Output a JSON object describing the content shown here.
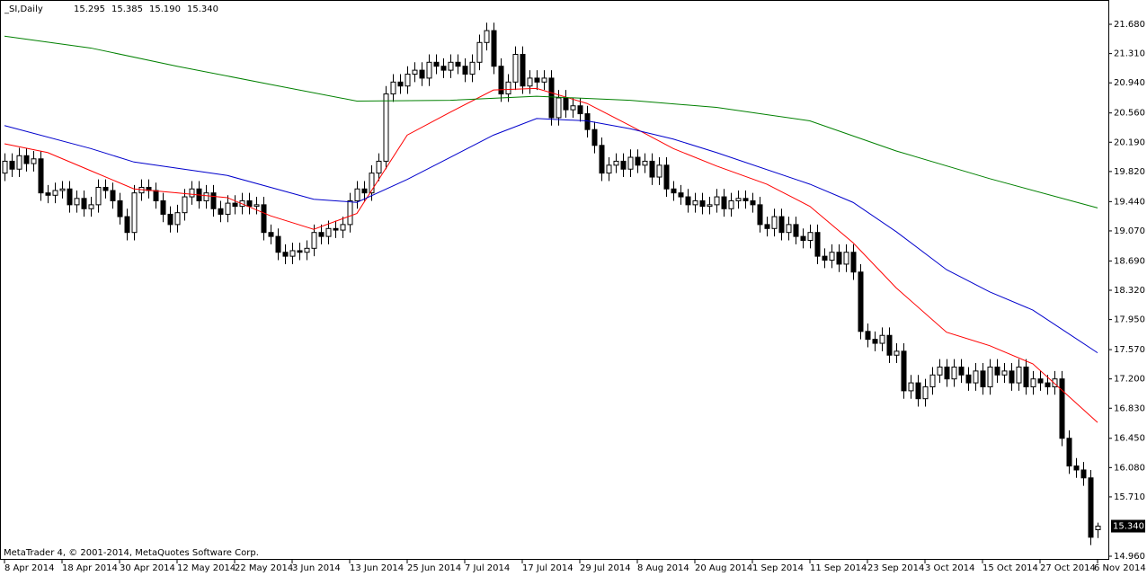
{
  "chart_data": {
    "type": "candlestick",
    "title": "_SI,Daily",
    "ohlc_labels": [
      "15.295",
      "15.385",
      "15.190",
      "15.340"
    ],
    "footer": "MetaTrader 4, © 2001-2014, MetaQuotes Software Corp.",
    "current_price": {
      "value": 15.34,
      "label": "15.340"
    },
    "up_color": "#ffffff",
    "down_color": "#000000",
    "categories": [
      "8 Apr 2014",
      null,
      null,
      null,
      null,
      null,
      null,
      null,
      "18 Apr 2014",
      null,
      null,
      null,
      null,
      null,
      null,
      null,
      "30 Apr 2014",
      null,
      null,
      null,
      null,
      null,
      null,
      null,
      "12 May 2014",
      null,
      null,
      null,
      null,
      null,
      null,
      null,
      "22 May 2014",
      null,
      null,
      null,
      null,
      null,
      null,
      null,
      "3 Jun 2014",
      null,
      null,
      null,
      null,
      null,
      null,
      null,
      "13 Jun 2014",
      null,
      null,
      null,
      null,
      null,
      null,
      null,
      "25 Jun 2014",
      null,
      null,
      null,
      null,
      null,
      null,
      null,
      "7 Jul 2014",
      null,
      null,
      null,
      null,
      null,
      null,
      null,
      "17 Jul 2014",
      null,
      null,
      null,
      null,
      null,
      null,
      null,
      "29 Jul 2014",
      null,
      null,
      null,
      null,
      null,
      null,
      null,
      "8 Aug 2014",
      null,
      null,
      null,
      null,
      null,
      null,
      null,
      "20 Aug 2014",
      null,
      null,
      null,
      null,
      null,
      null,
      null,
      "1 Sep 2014",
      null,
      null,
      null,
      null,
      null,
      null,
      null,
      "11 Sep 2014",
      null,
      null,
      null,
      null,
      null,
      null,
      null,
      "23 Sep 2014",
      null,
      null,
      null,
      null,
      null,
      null,
      null,
      "3 Oct 2014",
      null,
      null,
      null,
      null,
      null,
      null,
      null,
      "15 Oct 2014",
      null,
      null,
      null,
      null,
      null,
      null,
      null,
      "27 Oct 2014",
      null,
      null,
      null,
      null,
      null,
      null,
      null,
      "6 Nov 2014"
    ],
    "open": [
      19.8,
      19.95,
      19.85,
      20.02,
      19.92,
      19.98,
      19.55,
      19.52,
      19.58,
      19.6,
      19.4,
      19.48,
      19.35,
      19.4,
      19.62,
      19.58,
      19.45,
      19.25,
      19.05,
      19.55,
      19.62,
      19.58,
      19.45,
      19.28,
      19.15,
      19.3,
      19.5,
      19.6,
      19.45,
      19.55,
      19.35,
      19.28,
      19.42,
      19.38,
      19.45,
      19.38,
      19.4,
      19.05,
      19.0,
      18.8,
      18.75,
      18.82,
      18.8,
      18.85,
      19.05,
      19.0,
      19.1,
      19.08,
      19.15,
      19.45,
      19.6,
      19.55,
      19.8,
      19.95,
      20.8,
      20.95,
      20.9,
      21.05,
      21.1,
      21.0,
      21.2,
      21.15,
      21.1,
      21.2,
      21.15,
      21.05,
      21.2,
      21.45,
      21.6,
      21.15,
      20.8,
      20.95,
      21.3,
      20.9,
      21.0,
      20.95,
      21.0,
      20.5,
      20.75,
      20.6,
      20.65,
      20.55,
      20.35,
      20.15,
      19.8,
      19.9,
      19.95,
      19.85,
      20.0,
      19.9,
      19.95,
      19.75,
      19.9,
      19.6,
      19.55,
      19.5,
      19.4,
      19.45,
      19.38,
      19.4,
      19.5,
      19.35,
      19.45,
      19.48,
      19.45,
      19.4,
      19.15,
      19.1,
      19.25,
      19.05,
      19.15,
      19.0,
      18.95,
      19.05,
      18.75,
      18.7,
      18.8,
      18.65,
      18.8,
      18.55,
      17.8,
      17.7,
      17.65,
      17.75,
      17.5,
      17.55,
      17.05,
      17.15,
      16.95,
      17.1,
      17.25,
      17.35,
      17.2,
      17.35,
      17.25,
      17.15,
      17.3,
      17.1,
      17.35,
      17.25,
      17.3,
      17.15,
      17.35,
      17.1,
      17.2,
      17.15,
      17.1,
      17.2,
      16.45,
      16.1,
      16.05,
      15.95,
      15.295
    ],
    "high": [
      20.05,
      20.05,
      20.12,
      20.12,
      20.08,
      20.08,
      19.65,
      19.68,
      19.7,
      19.7,
      19.58,
      19.58,
      19.5,
      19.72,
      19.72,
      19.68,
      19.55,
      19.35,
      19.65,
      19.72,
      19.72,
      19.68,
      19.55,
      19.38,
      19.4,
      19.6,
      19.7,
      19.7,
      19.65,
      19.65,
      19.45,
      19.52,
      19.52,
      19.55,
      19.55,
      19.5,
      19.5,
      19.15,
      19.1,
      18.9,
      18.92,
      18.92,
      18.95,
      19.15,
      19.15,
      19.2,
      19.2,
      19.25,
      19.55,
      19.7,
      19.7,
      19.9,
      20.05,
      20.9,
      21.05,
      21.05,
      21.15,
      21.2,
      21.2,
      21.3,
      21.3,
      21.25,
      21.3,
      21.3,
      21.25,
      21.3,
      21.55,
      21.7,
      21.7,
      21.25,
      21.05,
      21.4,
      21.4,
      21.1,
      21.1,
      21.1,
      21.1,
      20.85,
      20.85,
      20.75,
      20.75,
      20.65,
      20.45,
      20.25,
      20.0,
      20.05,
      20.05,
      20.1,
      20.1,
      20.05,
      20.05,
      20.0,
      20.0,
      19.7,
      19.65,
      19.6,
      19.55,
      19.55,
      19.5,
      19.6,
      19.6,
      19.55,
      19.58,
      19.58,
      19.55,
      19.5,
      19.25,
      19.35,
      19.35,
      19.25,
      19.25,
      19.1,
      19.15,
      19.15,
      18.85,
      18.9,
      18.9,
      18.9,
      18.9,
      18.65,
      17.9,
      17.8,
      17.85,
      17.85,
      17.65,
      17.65,
      17.25,
      17.25,
      17.2,
      17.35,
      17.45,
      17.45,
      17.45,
      17.45,
      17.35,
      17.4,
      17.4,
      17.45,
      17.45,
      17.4,
      17.4,
      17.45,
      17.45,
      17.3,
      17.3,
      17.25,
      17.3,
      17.3,
      16.55,
      16.2,
      16.15,
      16.05,
      15.385
    ],
    "low": [
      19.7,
      19.75,
      19.75,
      19.82,
      19.82,
      19.45,
      19.42,
      19.42,
      19.48,
      19.3,
      19.3,
      19.25,
      19.25,
      19.3,
      19.48,
      19.35,
      19.15,
      18.95,
      18.95,
      19.45,
      19.48,
      19.35,
      19.18,
      19.05,
      19.05,
      19.2,
      19.4,
      19.35,
      19.35,
      19.25,
      19.18,
      19.18,
      19.28,
      19.28,
      19.28,
      19.28,
      18.95,
      18.9,
      18.7,
      18.65,
      18.65,
      18.7,
      18.7,
      18.75,
      18.9,
      18.9,
      18.98,
      18.98,
      19.05,
      19.35,
      19.45,
      19.45,
      19.7,
      19.85,
      20.7,
      20.8,
      20.8,
      20.95,
      20.9,
      20.9,
      21.05,
      21.0,
      21.0,
      21.05,
      20.95,
      20.95,
      21.1,
      21.35,
      21.05,
      20.7,
      20.7,
      20.85,
      20.8,
      20.8,
      20.85,
      20.85,
      20.4,
      20.4,
      20.5,
      20.5,
      20.45,
      20.25,
      20.05,
      19.7,
      19.7,
      19.8,
      19.75,
      19.75,
      19.8,
      19.8,
      19.65,
      19.65,
      19.5,
      19.45,
      19.4,
      19.3,
      19.3,
      19.28,
      19.28,
      19.3,
      19.25,
      19.25,
      19.35,
      19.35,
      19.3,
      19.05,
      19.0,
      19.0,
      18.95,
      18.95,
      18.9,
      18.85,
      18.85,
      18.65,
      18.6,
      18.6,
      18.55,
      18.55,
      18.45,
      17.7,
      17.6,
      17.55,
      17.55,
      17.4,
      17.4,
      16.95,
      16.95,
      16.85,
      16.85,
      17.0,
      17.15,
      17.1,
      17.1,
      17.15,
      17.05,
      17.05,
      17.0,
      17.0,
      17.15,
      17.15,
      17.05,
      17.05,
      17.0,
      17.0,
      17.05,
      17.0,
      17.0,
      16.35,
      16.0,
      15.95,
      15.85,
      15.1,
      15.19
    ],
    "close": [
      19.95,
      19.85,
      20.02,
      19.92,
      19.98,
      19.55,
      19.52,
      19.58,
      19.6,
      19.4,
      19.48,
      19.35,
      19.4,
      19.62,
      19.58,
      19.45,
      19.25,
      19.05,
      19.55,
      19.62,
      19.58,
      19.45,
      19.28,
      19.15,
      19.3,
      19.5,
      19.6,
      19.45,
      19.55,
      19.35,
      19.28,
      19.42,
      19.38,
      19.45,
      19.38,
      19.4,
      19.05,
      19.0,
      18.8,
      18.75,
      18.82,
      18.8,
      18.85,
      19.05,
      19.0,
      19.1,
      19.08,
      19.15,
      19.45,
      19.6,
      19.55,
      19.8,
      19.95,
      20.8,
      20.95,
      20.9,
      21.05,
      21.1,
      21.0,
      21.2,
      21.15,
      21.1,
      21.2,
      21.15,
      21.05,
      21.2,
      21.45,
      21.6,
      21.15,
      20.8,
      20.95,
      21.3,
      20.9,
      21.0,
      20.95,
      21.0,
      20.5,
      20.75,
      20.6,
      20.65,
      20.55,
      20.35,
      20.15,
      19.8,
      19.9,
      19.95,
      19.85,
      20.0,
      19.9,
      19.95,
      19.75,
      19.9,
      19.6,
      19.55,
      19.5,
      19.4,
      19.45,
      19.38,
      19.4,
      19.5,
      19.35,
      19.45,
      19.48,
      19.45,
      19.4,
      19.15,
      19.1,
      19.25,
      19.05,
      19.15,
      19.0,
      18.95,
      19.05,
      18.75,
      18.7,
      18.8,
      18.65,
      18.8,
      18.55,
      17.8,
      17.7,
      17.65,
      17.75,
      17.5,
      17.55,
      17.05,
      17.15,
      16.95,
      17.1,
      17.25,
      17.35,
      17.2,
      17.35,
      17.25,
      17.15,
      17.3,
      17.1,
      17.35,
      17.25,
      17.3,
      17.15,
      17.35,
      17.1,
      17.2,
      17.15,
      17.1,
      17.2,
      16.45,
      16.1,
      16.05,
      15.95,
      15.2,
      15.34
    ],
    "moving_averages": [
      {
        "color": "#ff0000",
        "x": [
          0,
          6,
          12,
          18,
          24,
          31,
          37,
          43,
          49,
          56,
          62,
          68,
          74,
          81,
          87,
          93,
          99,
          106,
          112,
          118,
          124,
          131,
          137,
          143,
          152
        ],
        "values": [
          20.17,
          20.06,
          19.83,
          19.6,
          19.55,
          19.49,
          19.26,
          19.09,
          19.29,
          20.28,
          20.57,
          20.85,
          20.87,
          20.68,
          20.4,
          20.11,
          19.89,
          19.66,
          19.38,
          18.92,
          18.35,
          17.79,
          17.62,
          17.39,
          16.65
        ]
      },
      {
        "color": "#0000cc",
        "x": [
          0,
          12,
          18,
          31,
          43,
          49,
          56,
          62,
          68,
          74,
          81,
          87,
          93,
          99,
          112,
          118,
          124,
          131,
          137,
          143,
          152
        ],
        "values": [
          20.4,
          20.11,
          19.94,
          19.77,
          19.47,
          19.43,
          19.72,
          20.0,
          20.28,
          20.49,
          20.46,
          20.36,
          20.23,
          20.06,
          19.66,
          19.43,
          19.06,
          18.58,
          18.3,
          18.07,
          17.53
        ]
      },
      {
        "color": "#008000",
        "x": [
          0,
          12,
          24,
          37,
          49,
          62,
          74,
          87,
          99,
          112,
          124,
          137,
          152
        ],
        "values": [
          21.53,
          21.38,
          21.15,
          20.92,
          20.71,
          20.72,
          20.77,
          20.72,
          20.63,
          20.46,
          20.08,
          19.73,
          19.36
        ]
      }
    ],
    "ylim": [
      14.926,
      21.964
    ],
    "yticks": [
      {
        "value": 14.96,
        "label": "14.960"
      },
      {
        "value": 15.71,
        "label": "15.710"
      },
      {
        "value": 16.08,
        "label": "16.080"
      },
      {
        "value": 16.45,
        "label": "16.450"
      },
      {
        "value": 16.83,
        "label": "16.830"
      },
      {
        "value": 17.2,
        "label": "17.200"
      },
      {
        "value": 17.57,
        "label": "17.570"
      },
      {
        "value": 17.95,
        "label": "17.950"
      },
      {
        "value": 18.32,
        "label": "18.320"
      },
      {
        "value": 18.69,
        "label": "18.690"
      },
      {
        "value": 19.07,
        "label": "19.070"
      },
      {
        "value": 19.44,
        "label": "19.440"
      },
      {
        "value": 19.82,
        "label": "19.820"
      },
      {
        "value": 20.19,
        "label": "20.190"
      },
      {
        "value": 20.56,
        "label": "20.560"
      },
      {
        "value": 20.94,
        "label": "20.940"
      },
      {
        "value": 21.31,
        "label": "21.310"
      },
      {
        "value": 21.68,
        "label": "21.680"
      }
    ]
  }
}
